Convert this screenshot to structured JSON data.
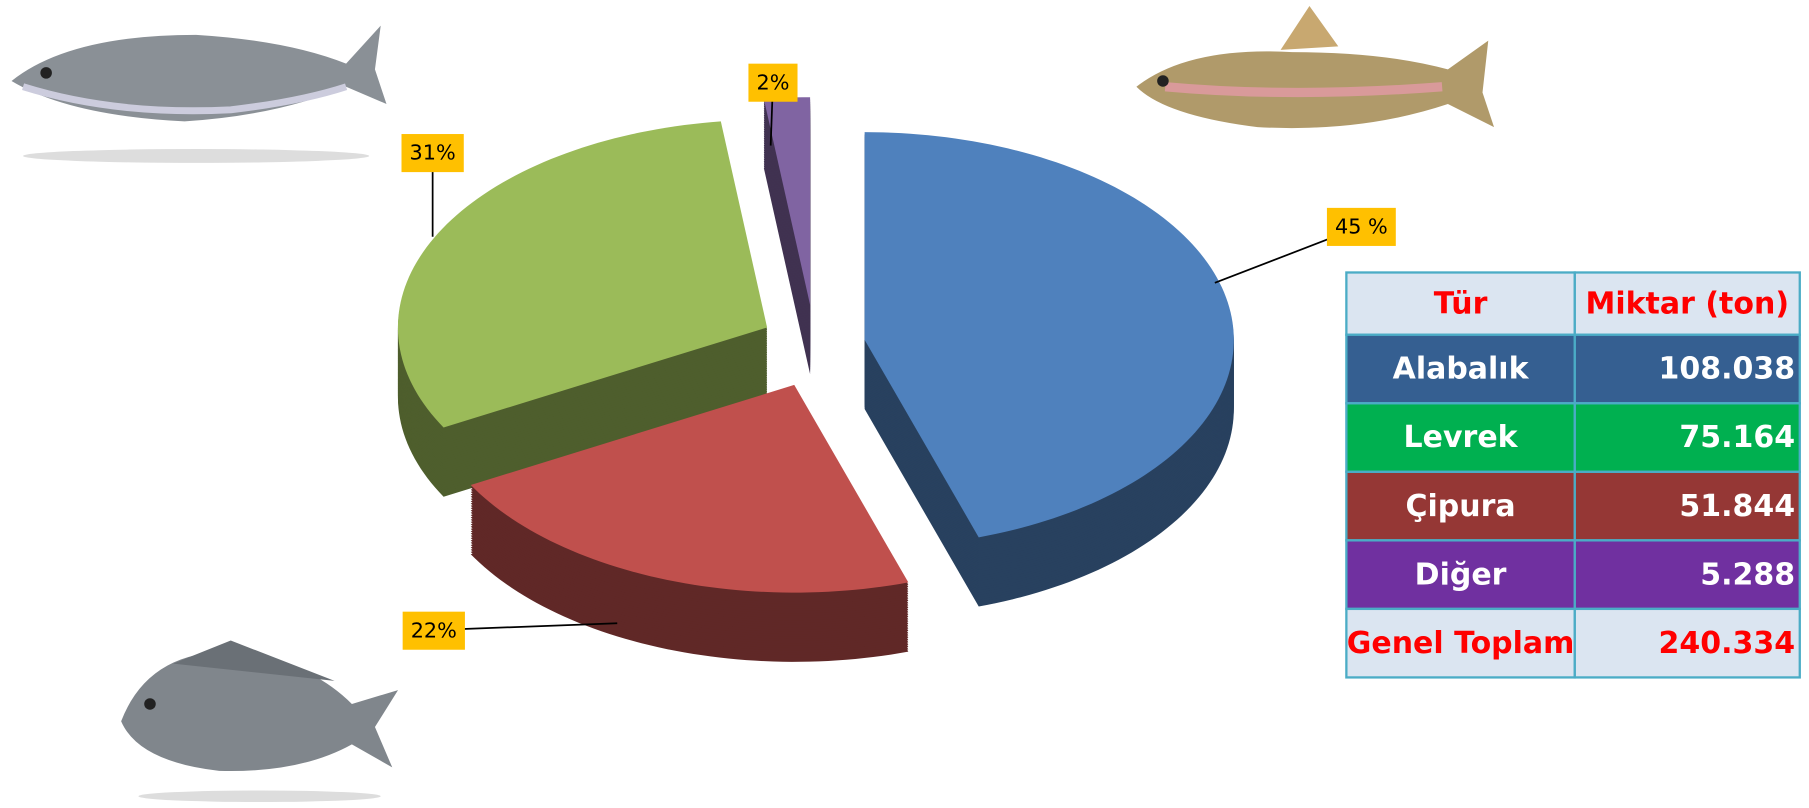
{
  "chart_data": {
    "type": "pie3d",
    "values": [
      45,
      22,
      31,
      2
    ],
    "value_labels": [
      "45 %",
      "22%",
      "31%",
      "2%"
    ],
    "colors": [
      "#4f81bd",
      "#c0504d",
      "#9bbb59",
      "#8064a2"
    ]
  },
  "table": {
    "header": [
      "Tür",
      "Miktar (ton)"
    ],
    "rows": [
      [
        "Alabalık",
        "108.038"
      ],
      [
        "Levrek",
        "75.164"
      ],
      [
        "Çipura",
        "51.844"
      ],
      [
        "Diğer",
        "5.288"
      ]
    ],
    "total": [
      "Genel Toplam",
      "240.334"
    ]
  }
}
